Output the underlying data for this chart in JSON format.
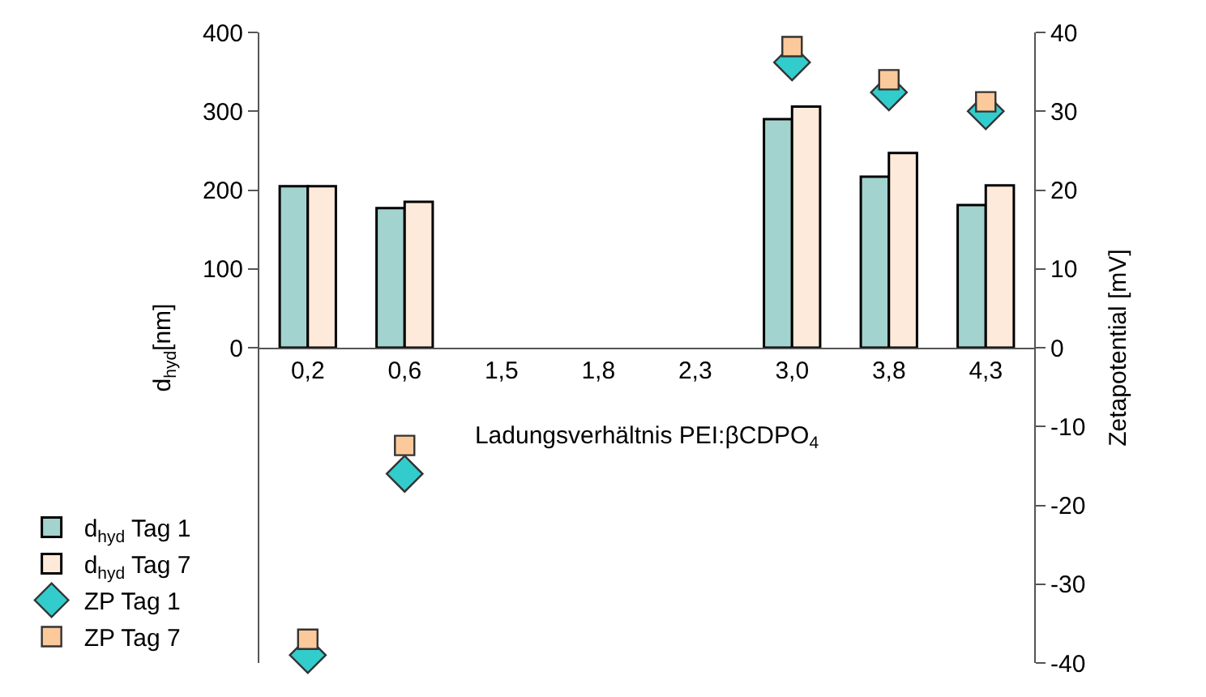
{
  "chart_data": {
    "type": "bar",
    "categories": [
      "0,2",
      "0,6",
      "1,5",
      "1,8",
      "2,3",
      "3,0",
      "3,8",
      "4,3"
    ],
    "xlabel": "Ladungsverhältnis PEI:βCDPO$_{4}$",
    "ylabel": "d$_{hyd}$[nm]",
    "y2label": "Zetapotential [mV]",
    "ylim": [
      -400,
      400
    ],
    "yticks": [
      0,
      100,
      200,
      300,
      400
    ],
    "y2lim": [
      -40,
      40
    ],
    "y2ticks": [
      -40,
      -30,
      -20,
      -10,
      0,
      10,
      20,
      30,
      40
    ],
    "legend": "left",
    "series": [
      {
        "name": "d$_{hyd}$ Tag 1",
        "color": "#a3d3ce",
        "values": [
          205,
          177,
          null,
          null,
          null,
          290,
          217,
          181
        ]
      },
      {
        "name": "d$_{hyd}$ Tag 7",
        "color": "#fdeadb",
        "values": [
          205,
          185,
          null,
          null,
          null,
          306,
          247,
          206
        ]
      },
      {
        "name": "ZP Tag 1",
        "type": "scatter",
        "axis": "y2",
        "marker": "diamond",
        "color": "#33cccc",
        "values": [
          -39,
          -16,
          null,
          null,
          null,
          36.2,
          32.4,
          30
        ]
      },
      {
        "name": "ZP Tag 7",
        "type": "scatter",
        "axis": "y2",
        "marker": "square",
        "color": "#fcc99a",
        "values": [
          -37,
          -12.4,
          null,
          null,
          null,
          38.2,
          34,
          31.2
        ]
      }
    ]
  }
}
